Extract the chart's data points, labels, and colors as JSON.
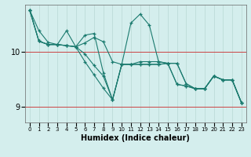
{
  "xlabel": "Humidex (Indice chaleur)",
  "background_color": "#d4eeed",
  "grid_color": "#b8d8d4",
  "line_color": "#1a7a6e",
  "red_line_color": "#cc4444",
  "x_ticks": [
    0,
    1,
    2,
    3,
    4,
    5,
    6,
    7,
    8,
    9,
    10,
    11,
    12,
    13,
    14,
    15,
    16,
    17,
    18,
    19,
    20,
    21,
    22,
    23
  ],
  "y_ticks": [
    9,
    10
  ],
  "ylim": [
    8.72,
    10.85
  ],
  "xlim": [
    -0.5,
    23.5
  ],
  "series": [
    [
      10.75,
      10.38,
      10.17,
      10.13,
      10.11,
      10.09,
      10.16,
      10.26,
      10.18,
      9.82,
      9.77,
      10.52,
      10.68,
      10.48,
      9.82,
      9.79,
      9.79,
      9.42,
      9.33,
      9.33,
      9.56,
      9.49,
      9.49,
      9.08
    ],
    [
      10.75,
      10.19,
      10.13,
      10.13,
      10.11,
      10.09,
      10.3,
      10.33,
      9.62,
      9.13,
      9.77,
      9.77,
      9.82,
      9.82,
      9.82,
      9.79,
      9.79,
      9.42,
      9.33,
      9.33,
      9.56,
      9.49,
      9.49,
      9.08
    ],
    [
      10.75,
      10.19,
      10.13,
      10.13,
      10.11,
      10.09,
      9.82,
      9.58,
      9.34,
      9.13,
      9.77,
      9.77,
      9.77,
      9.77,
      9.77,
      9.79,
      9.41,
      9.38,
      9.33,
      9.33,
      9.56,
      9.49,
      9.49,
      9.08
    ],
    [
      10.75,
      10.19,
      10.13,
      10.13,
      10.38,
      10.09,
      9.96,
      9.75,
      9.56,
      9.13,
      9.77,
      9.77,
      9.77,
      9.77,
      9.77,
      9.79,
      9.41,
      9.38,
      9.33,
      9.33,
      9.56,
      9.49,
      9.49,
      9.08
    ]
  ]
}
